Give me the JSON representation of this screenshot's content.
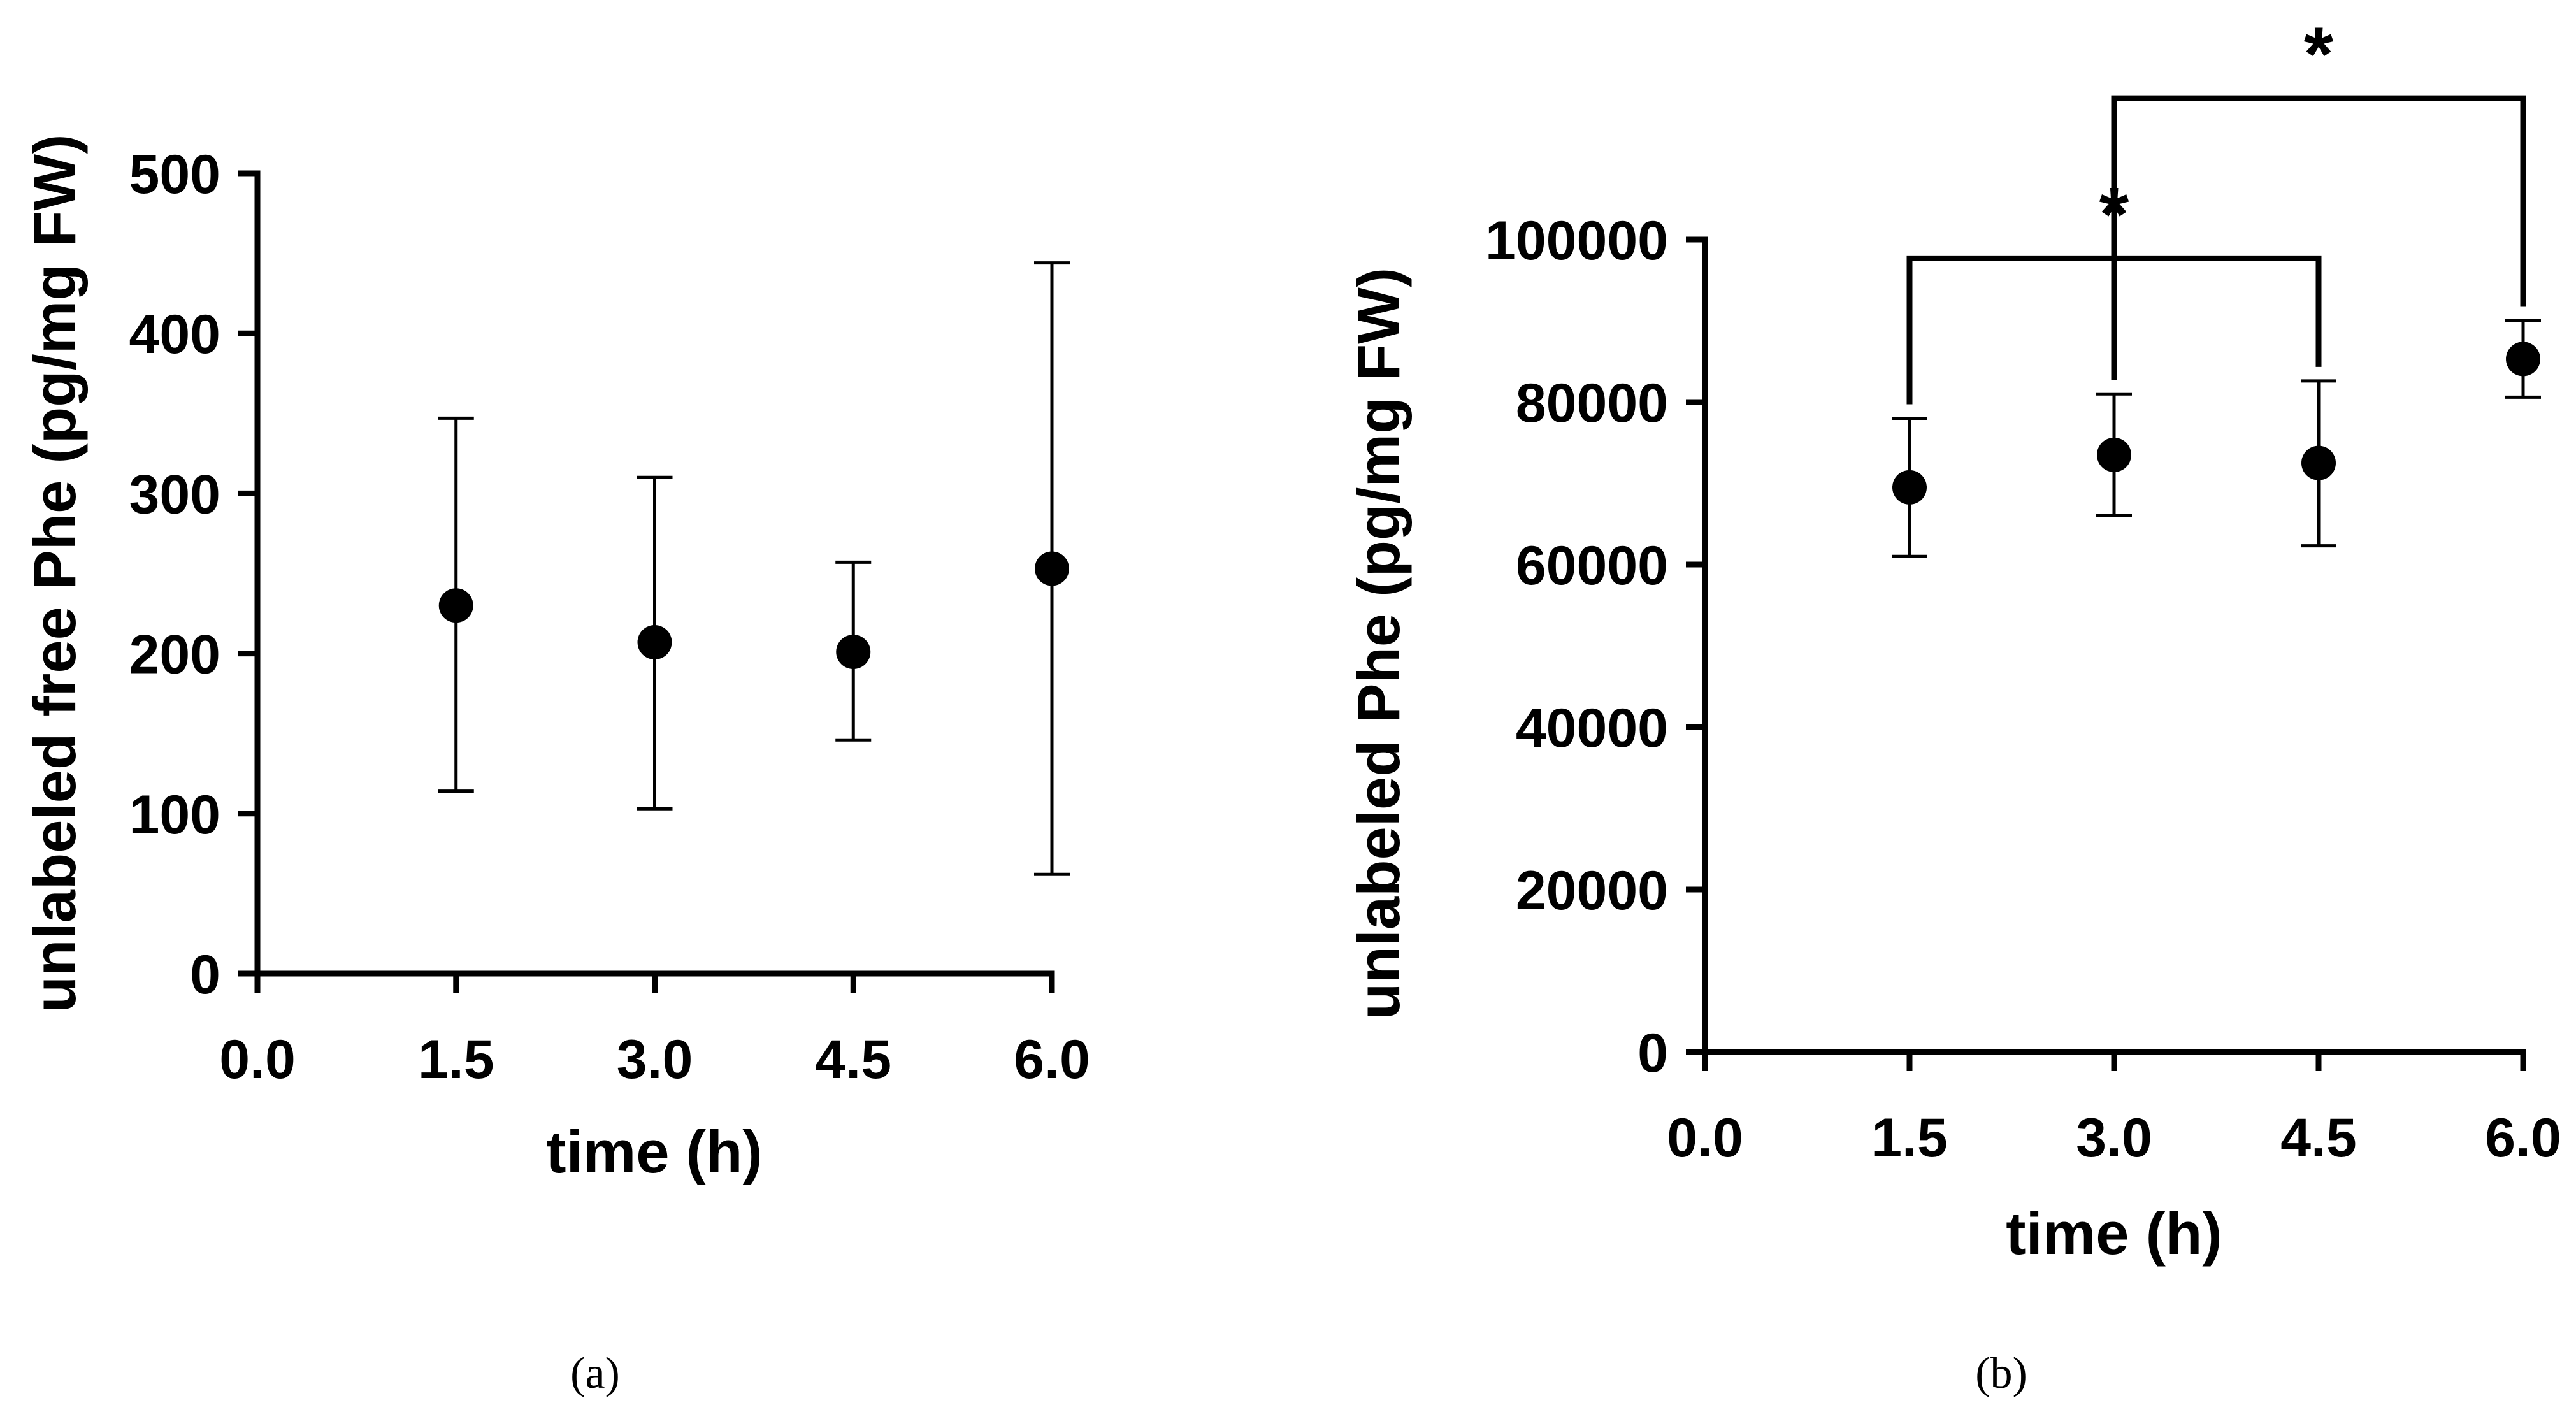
{
  "chart_data": [
    {
      "id": "a",
      "type": "scatter",
      "panel_label": "(a)",
      "title": "",
      "xlabel": "time (h)",
      "ylabel": "unlabeled free Phe (pg/mg FW)",
      "xlim": [
        0,
        6
      ],
      "ylim": [
        0,
        500
      ],
      "xticks": [
        0,
        1.5,
        3,
        4.5,
        6
      ],
      "xtick_labels": [
        "0.0",
        "1.5",
        "3.0",
        "4.5",
        "6.0"
      ],
      "yticks": [
        0,
        100,
        200,
        300,
        400,
        500
      ],
      "ytick_labels": [
        "0",
        "100",
        "200",
        "300",
        "400",
        "500"
      ],
      "grid": false,
      "series": [
        {
          "name": "unlabeled free Phe",
          "x": [
            1.5,
            3.0,
            4.5,
            6.0
          ],
          "y": [
            230,
            207,
            201,
            253
          ],
          "error_low": [
            114,
            103,
            146,
            62
          ],
          "error_high": [
            347,
            310,
            257,
            444
          ]
        }
      ],
      "significance": []
    },
    {
      "id": "b",
      "type": "scatter",
      "panel_label": "(b)",
      "title": "",
      "xlabel": "time (h)",
      "ylabel": "unlabeled Phe (pg/mg FW)",
      "xlim": [
        0,
        6
      ],
      "ylim": [
        0,
        100000
      ],
      "xticks": [
        0,
        1.5,
        3,
        4.5,
        6
      ],
      "xtick_labels": [
        "0.0",
        "1.5",
        "3.0",
        "4.5",
        "6.0"
      ],
      "yticks": [
        0,
        20000,
        40000,
        60000,
        80000,
        100000
      ],
      "ytick_labels": [
        "0",
        "20000",
        "40000",
        "60000",
        "80000",
        "100000"
      ],
      "grid": false,
      "series": [
        {
          "name": "unlabeled Phe",
          "x": [
            1.5,
            3.0,
            4.5,
            6.0
          ],
          "y": [
            69500,
            73500,
            72500,
            85300
          ],
          "error_low": [
            61000,
            66000,
            62300,
            80600
          ],
          "error_high": [
            78000,
            81000,
            82600,
            90000
          ]
        }
      ],
      "significance": [
        {
          "from": 1.5,
          "to": 4.5,
          "bar_y": 97700,
          "label": "*"
        },
        {
          "from": 3.0,
          "to": 6.0,
          "bar_y": 117400,
          "label": "*"
        }
      ]
    }
  ]
}
